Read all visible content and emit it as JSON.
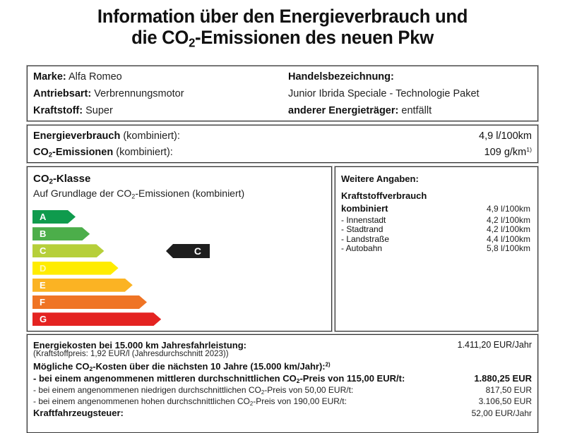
{
  "title": {
    "line1": "Information über den Energieverbrauch und",
    "line2_prefix": "die CO",
    "line2_sub": "2",
    "line2_suffix": "-Emissionen des neuen Pkw"
  },
  "vehicle": {
    "brand_label": "Marke:",
    "brand_value": "Alfa Romeo",
    "drive_label": "Antriebsart:",
    "drive_value": "Verbrennungsmotor",
    "fuel_label": "Kraftstoff:",
    "fuel_value": "Super",
    "trade_name_label": "Handelsbezeichnung:",
    "trade_name_value": "Junior Ibrida Speciale - Technologie Paket",
    "other_energy_label": "anderer Energieträger:",
    "other_energy_value": "entfällt"
  },
  "consumption": {
    "energy_label": "Energieverbrauch",
    "energy_qualifier": "(kombiniert):",
    "energy_value": "4,9 l/100km",
    "co2_label_prefix": "CO",
    "co2_label_sub": "2",
    "co2_label_suffix": "-Emissionen",
    "co2_qualifier": "(kombiniert):",
    "co2_value": "109 g/km",
    "co2_footnote": "1)"
  },
  "co2_class": {
    "heading_prefix": "CO",
    "heading_sub": "2",
    "heading_suffix": "-Klasse",
    "subheading_prefix": "Auf Grundlage der CO",
    "subheading_sub": "2",
    "subheading_suffix": "-Emissionen (kombiniert)",
    "classes": [
      {
        "label": "A",
        "color": "#0f9b4d"
      },
      {
        "label": "B",
        "color": "#4cae4a"
      },
      {
        "label": "C",
        "color": "#b6cf3a"
      },
      {
        "label": "D",
        "color": "#ffec00"
      },
      {
        "label": "E",
        "color": "#fbb323"
      },
      {
        "label": "F",
        "color": "#ef7425"
      },
      {
        "label": "G",
        "color": "#e42321"
      }
    ],
    "current_class": "C"
  },
  "further_info": {
    "heading": "Weitere Angaben:",
    "subheading": "Kraftstoffverbrauch",
    "rows": [
      {
        "label": "kombiniert",
        "value": "4,9 l/100km"
      },
      {
        "label": "- Innenstadt",
        "value": "4,2 l/100km"
      },
      {
        "label": "- Stadtrand",
        "value": "4,2 l/100km"
      },
      {
        "label": "- Landstraße",
        "value": "4,4 l/100km"
      },
      {
        "label": "- Autobahn",
        "value": "5,8 l/100km"
      }
    ]
  },
  "costs": {
    "energy_cost_label": "Energiekosten bei 15.000 km Jahresfahrleistung:",
    "energy_cost_value": "1.411,20 EUR/Jahr",
    "fuel_price_note": "(Kraftstoffpreis: 1,92 EUR/l (Jahresdurchschnitt 2023))",
    "co2_costs_label_prefix": "Mögliche CO",
    "co2_costs_label_sub": "2",
    "co2_costs_label_suffix": "-Kosten über die nächsten 10 Jahre (15.000 km/Jahr):",
    "co2_costs_footnote": "2)",
    "mid_prefix": "- bei einem angenommenen mittleren durchschnittlichen CO",
    "mid_sub": "2",
    "mid_suffix": "-Preis von  115,00 EUR/t:",
    "mid_value": "1.880,25 EUR",
    "low_prefix": "- bei einem angenommenen niedrigen durchschnittlichen CO",
    "low_sub": "2",
    "low_suffix": "-Preis von  50,00 EUR/t:",
    "low_value": "817,50 EUR",
    "high_prefix": "- bei einem angenommenen hohen durchschnittlichen CO",
    "high_sub": "2",
    "high_suffix": "-Preis von  190,00 EUR/t:",
    "high_value": "3.106,50 EUR",
    "tax_label": "Kraftfahrzeugsteuer:",
    "tax_value": "52,00 EUR/Jahr"
  }
}
